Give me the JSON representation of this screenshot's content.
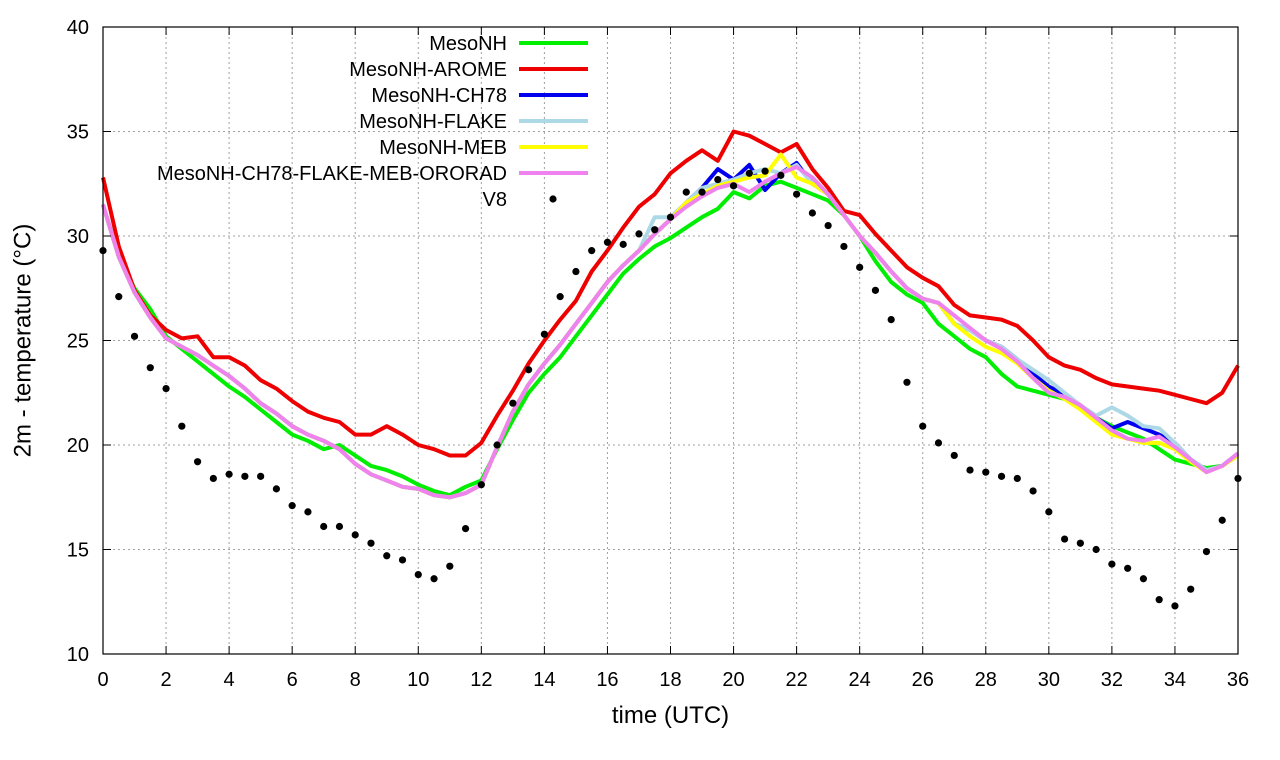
{
  "chart_data": {
    "type": "line",
    "xlabel": "time (UTC)",
    "ylabel": "2m - temperature (°C)",
    "xlim": [
      0,
      36
    ],
    "ylim": [
      10,
      40
    ],
    "xticks": [
      0,
      2,
      4,
      6,
      8,
      10,
      12,
      14,
      16,
      18,
      20,
      22,
      24,
      26,
      28,
      30,
      32,
      34,
      36
    ],
    "yticks": [
      10,
      15,
      20,
      25,
      30,
      35,
      40
    ],
    "grid": true,
    "legend_position": "top-left",
    "series": [
      {
        "name": "MesoNH",
        "color": "#00ee00",
        "style": "line",
        "x": [
          0,
          0.5,
          1,
          1.5,
          2,
          2.5,
          3,
          3.5,
          4,
          4.5,
          5,
          5.5,
          6,
          6.5,
          7,
          7.5,
          8,
          8.5,
          9,
          9.5,
          10,
          10.5,
          11,
          11.5,
          12,
          12.5,
          13,
          13.5,
          14,
          14.5,
          15,
          15.5,
          16,
          16.5,
          17,
          17.5,
          18,
          18.5,
          19,
          19.5,
          20,
          20.5,
          21,
          21.5,
          22,
          22.5,
          23,
          23.5,
          24,
          24.5,
          25,
          25.5,
          26,
          26.5,
          27,
          27.5,
          28,
          28.5,
          29,
          29.5,
          30,
          30.5,
          31,
          31.5,
          32,
          32.5,
          33,
          33.5,
          34,
          34.5,
          35,
          35.5,
          36
        ],
        "y": [
          31.5,
          29,
          27.5,
          26.5,
          25.2,
          24.6,
          24,
          23.4,
          22.8,
          22.3,
          21.7,
          21.1,
          20.5,
          20.2,
          19.8,
          20,
          19.5,
          19,
          18.8,
          18.5,
          18.1,
          17.8,
          17.6,
          18,
          18.3,
          19.8,
          21.2,
          22.5,
          23.4,
          24.2,
          25.2,
          26.2,
          27.2,
          28.2,
          28.9,
          29.5,
          29.9,
          30.4,
          30.9,
          31.3,
          32.1,
          31.8,
          32.4,
          32.6,
          32.3,
          32,
          31.7,
          31,
          30,
          28.8,
          27.8,
          27.2,
          26.8,
          25.8,
          25.2,
          24.6,
          24.2,
          23.4,
          22.8,
          22.6,
          22.4,
          22.2,
          21.8,
          21.3,
          20.9,
          20.6,
          20.3,
          19.8,
          19.3,
          19.1,
          18.9,
          19,
          19.5
        ]
      },
      {
        "name": "MesoNH-AROME",
        "color": "#ee0000",
        "style": "line",
        "x": [
          0,
          0.5,
          1,
          1.5,
          2,
          2.5,
          3,
          3.5,
          4,
          4.5,
          5,
          5.5,
          6,
          6.5,
          7,
          7.5,
          8,
          8.5,
          9,
          9.5,
          10,
          10.5,
          11,
          11.5,
          12,
          12.5,
          13,
          13.5,
          14,
          14.5,
          15,
          15.5,
          16,
          16.5,
          17,
          17.5,
          18,
          18.5,
          19,
          19.5,
          20,
          20.5,
          21,
          21.5,
          22,
          22.5,
          23,
          23.5,
          24,
          24.5,
          25,
          25.5,
          26,
          26.5,
          27,
          27.5,
          28,
          28.5,
          29,
          29.5,
          30,
          30.5,
          31,
          31.5,
          32,
          32.5,
          33,
          33.5,
          34,
          34.5,
          35,
          35.5,
          36
        ],
        "y": [
          32.8,
          29.5,
          27.4,
          26.2,
          25.5,
          25.1,
          25.2,
          24.2,
          24.2,
          23.8,
          23.1,
          22.7,
          22.1,
          21.6,
          21.3,
          21.1,
          20.5,
          20.5,
          20.9,
          20.5,
          20,
          19.8,
          19.5,
          19.5,
          20.1,
          21.4,
          22.6,
          23.9,
          25,
          26,
          26.9,
          28.3,
          29.3,
          30.4,
          31.4,
          32,
          33,
          33.6,
          34.1,
          33.6,
          35,
          34.8,
          34.4,
          34,
          34.4,
          33.2,
          32.3,
          31.2,
          31,
          30.1,
          29.3,
          28.5,
          28,
          27.6,
          26.7,
          26.2,
          26.1,
          26,
          25.7,
          25,
          24.2,
          23.8,
          23.6,
          23.2,
          22.9,
          22.8,
          22.7,
          22.6,
          22.4,
          22.2,
          22,
          22.5,
          23.8
        ]
      },
      {
        "name": "MesoNH-CH78",
        "color": "#0000ee",
        "style": "line",
        "x": [
          0,
          0.5,
          1,
          1.5,
          2,
          2.5,
          3,
          3.5,
          4,
          4.5,
          5,
          5.5,
          6,
          6.5,
          7,
          7.5,
          8,
          8.5,
          9,
          9.5,
          10,
          10.5,
          11,
          11.5,
          12,
          12.5,
          13,
          13.5,
          14,
          14.5,
          15,
          15.5,
          16,
          16.5,
          17,
          17.5,
          18,
          18.5,
          19,
          19.5,
          20,
          20.5,
          21,
          21.5,
          22,
          22.5,
          23,
          23.5,
          24,
          24.5,
          25,
          25.5,
          26,
          26.5,
          27,
          27.5,
          28,
          28.5,
          29,
          29.5,
          30,
          30.5,
          31,
          31.5,
          32,
          32.5,
          33,
          33.5,
          34,
          34.5,
          35,
          35.5,
          36
        ],
        "y": [
          31.5,
          29,
          27.3,
          26.1,
          25.1,
          24.7,
          24.3,
          23.8,
          23.3,
          22.7,
          22,
          21.5,
          20.9,
          20.5,
          20.2,
          19.8,
          19.1,
          18.6,
          18.3,
          18,
          17.9,
          17.6,
          17.5,
          17.7,
          18.1,
          19.9,
          21.6,
          22.9,
          23.9,
          24.8,
          25.8,
          26.8,
          27.8,
          28.6,
          29.3,
          30.1,
          30.8,
          31.6,
          32.3,
          33.2,
          32.7,
          33.4,
          32.2,
          33,
          33.5,
          32.5,
          32,
          31,
          30,
          29.2,
          28.3,
          27.5,
          27,
          26.8,
          25.8,
          25.5,
          25,
          24.7,
          24.1,
          23.4,
          22.8,
          22.4,
          21.9,
          21.3,
          20.8,
          21.1,
          20.8,
          20.5,
          20.1,
          19.3,
          18.8,
          19,
          19.6
        ]
      },
      {
        "name": "MesoNH-FLAKE",
        "color": "#add8e6",
        "style": "line",
        "x": [
          0,
          0.5,
          1,
          1.5,
          2,
          2.5,
          3,
          3.5,
          4,
          4.5,
          5,
          5.5,
          6,
          6.5,
          7,
          7.5,
          8,
          8.5,
          9,
          9.5,
          10,
          10.5,
          11,
          11.5,
          12,
          12.5,
          13,
          13.5,
          14,
          14.5,
          15,
          15.5,
          16,
          16.5,
          17,
          17.5,
          18,
          18.5,
          19,
          19.5,
          20,
          20.5,
          21,
          21.5,
          22,
          22.5,
          23,
          23.5,
          24,
          24.5,
          25,
          25.5,
          26,
          26.5,
          27,
          27.5,
          28,
          28.5,
          29,
          29.5,
          30,
          30.5,
          31,
          31.5,
          32,
          32.5,
          33,
          33.5,
          34,
          34.5,
          35,
          35.5,
          36
        ],
        "y": [
          31.5,
          29,
          27.3,
          26.1,
          25.1,
          24.7,
          24.3,
          23.8,
          23.3,
          22.7,
          22,
          21.5,
          20.9,
          20.5,
          20.2,
          19.8,
          19.1,
          18.6,
          18.3,
          18,
          17.9,
          17.6,
          17.5,
          17.7,
          18.1,
          19.9,
          21.6,
          22.9,
          23.9,
          24.8,
          25.8,
          26.8,
          27.8,
          28.6,
          29.3,
          30.9,
          30.9,
          31.6,
          32.3,
          32.5,
          32.7,
          33,
          33.2,
          33,
          33.4,
          32.5,
          32,
          31,
          30,
          29.2,
          28.3,
          27.5,
          27,
          26.8,
          25.8,
          25.5,
          25,
          24.7,
          24.1,
          23.6,
          23.1,
          22.5,
          21.9,
          21.4,
          21.8,
          21.4,
          20.9,
          20.8,
          20.1,
          19.3,
          18.8,
          19,
          19.6
        ]
      },
      {
        "name": "MesoNH-MEB",
        "color": "#ffff00",
        "style": "line",
        "x": [
          0,
          0.5,
          1,
          1.5,
          2,
          2.5,
          3,
          3.5,
          4,
          4.5,
          5,
          5.5,
          6,
          6.5,
          7,
          7.5,
          8,
          8.5,
          9,
          9.5,
          10,
          10.5,
          11,
          11.5,
          12,
          12.5,
          13,
          13.5,
          14,
          14.5,
          15,
          15.5,
          16,
          16.5,
          17,
          17.5,
          18,
          18.5,
          19,
          19.5,
          20,
          20.5,
          21,
          21.5,
          22,
          22.5,
          23,
          23.5,
          24,
          24.5,
          25,
          25.5,
          26,
          26.5,
          27,
          27.5,
          28,
          28.5,
          29,
          29.5,
          30,
          30.5,
          31,
          31.5,
          32,
          32.5,
          33,
          33.5,
          34,
          34.5,
          35,
          35.5,
          36
        ],
        "y": [
          31.5,
          29,
          27.3,
          26.1,
          25.1,
          24.7,
          24.3,
          23.8,
          23.3,
          22.7,
          22,
          21.5,
          20.9,
          20.5,
          20.2,
          19.8,
          19.1,
          18.6,
          18.3,
          18,
          17.9,
          17.6,
          17.5,
          17.7,
          18.1,
          19.9,
          21.6,
          22.9,
          23.9,
          24.8,
          25.8,
          26.8,
          27.8,
          28.6,
          29.3,
          30.1,
          30.8,
          31.6,
          32,
          32.4,
          32.6,
          32.8,
          32.9,
          33.9,
          32.8,
          32.5,
          32,
          31,
          30,
          29.2,
          28.3,
          27.5,
          27,
          26.8,
          25.8,
          25.2,
          24.7,
          24.4,
          23.9,
          23.2,
          22.6,
          22.2,
          21.7,
          21.1,
          20.5,
          20.3,
          20.1,
          20.1,
          19.8,
          19.2,
          18.7,
          19,
          19.5
        ]
      },
      {
        "name": "MesoNH-CH78-FLAKE-MEB-ORORAD",
        "color": "#ee82ee",
        "style": "line",
        "x": [
          0,
          0.5,
          1,
          1.5,
          2,
          2.5,
          3,
          3.5,
          4,
          4.5,
          5,
          5.5,
          6,
          6.5,
          7,
          7.5,
          8,
          8.5,
          9,
          9.5,
          10,
          10.5,
          11,
          11.5,
          12,
          12.5,
          13,
          13.5,
          14,
          14.5,
          15,
          15.5,
          16,
          16.5,
          17,
          17.5,
          18,
          18.5,
          19,
          19.5,
          20,
          20.5,
          21,
          21.5,
          22,
          22.5,
          23,
          23.5,
          24,
          24.5,
          25,
          25.5,
          26,
          26.5,
          27,
          27.5,
          28,
          28.5,
          29,
          29.5,
          30,
          30.5,
          31,
          31.5,
          32,
          32.5,
          33,
          33.5,
          34,
          34.5,
          35,
          35.5,
          36
        ],
        "y": [
          31.5,
          29,
          27.3,
          26.1,
          25.1,
          24.7,
          24.3,
          23.8,
          23.3,
          22.7,
          22,
          21.5,
          20.9,
          20.5,
          20.2,
          19.8,
          19.1,
          18.6,
          18.3,
          18,
          17.9,
          17.6,
          17.5,
          17.7,
          18.1,
          19.9,
          21.6,
          22.9,
          23.9,
          24.8,
          25.8,
          26.8,
          27.8,
          28.6,
          29.3,
          30.1,
          30.8,
          31.4,
          31.9,
          32.3,
          32.5,
          32.1,
          32.6,
          33,
          33.3,
          32.8,
          32,
          31,
          30,
          29.2,
          28.3,
          27.5,
          27,
          26.8,
          26.2,
          25.6,
          25,
          24.6,
          24,
          23.2,
          22.5,
          22.3,
          21.9,
          21.3,
          20.7,
          20.3,
          20.2,
          20.4,
          19.9,
          19.3,
          18.7,
          19,
          19.6
        ]
      },
      {
        "name": "V8",
        "color": "#000000",
        "style": "points",
        "x": [
          0,
          0.5,
          1,
          1.5,
          2,
          2.5,
          3,
          3.5,
          4,
          4.5,
          5,
          5.5,
          6,
          6.5,
          7,
          7.5,
          8,
          8.5,
          9,
          9.5,
          10,
          10.5,
          11,
          11.5,
          12,
          12.5,
          13,
          13.5,
          14,
          14.5,
          15,
          15.5,
          16,
          16.5,
          17,
          17.5,
          18,
          18.5,
          19,
          19.5,
          20,
          20.5,
          21,
          21.5,
          22,
          22.5,
          23,
          23.5,
          24,
          24.5,
          25,
          25.5,
          26,
          26.5,
          27,
          27.5,
          28,
          28.5,
          29,
          29.5,
          30,
          30.5,
          31,
          31.5,
          32,
          32.5,
          33,
          33.5,
          34,
          34.5,
          35,
          35.5,
          36
        ],
        "y": [
          29.3,
          27.1,
          25.2,
          23.7,
          22.7,
          20.9,
          19.2,
          18.4,
          18.6,
          18.5,
          18.5,
          17.9,
          17.1,
          16.8,
          16.1,
          16.1,
          15.7,
          15.3,
          14.7,
          14.5,
          13.8,
          13.6,
          14.2,
          16,
          18.1,
          20,
          22,
          23.6,
          25.3,
          27.1,
          28.3,
          29.3,
          29.7,
          29.6,
          30.1,
          30.3,
          30.9,
          32.1,
          32.1,
          32.7,
          32.4,
          33,
          33.1,
          32.9,
          32,
          31.1,
          30.5,
          29.5,
          28.5,
          27.4,
          26,
          23,
          20.9,
          20.1,
          19.5,
          18.8,
          18.7,
          18.5,
          18.4,
          17.8,
          16.8,
          15.5,
          15.3,
          15,
          14.3,
          14.1,
          13.6,
          12.6,
          12.3,
          13.1,
          14.9,
          16.4,
          18.4
        ]
      }
    ]
  }
}
